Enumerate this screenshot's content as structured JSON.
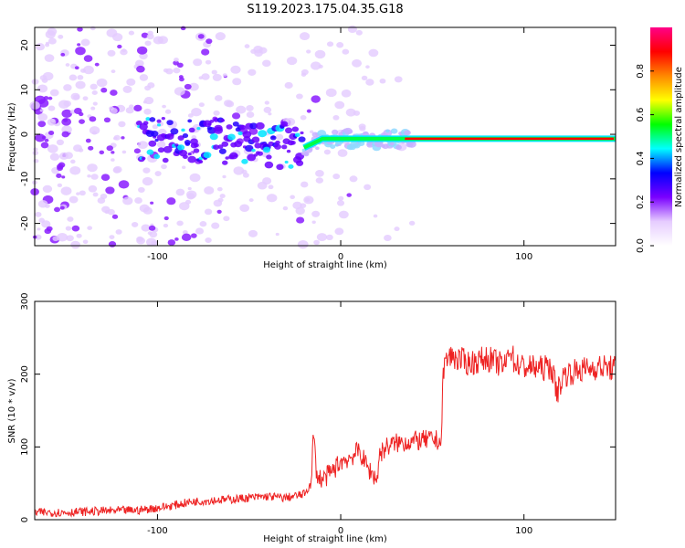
{
  "figure_title": "S119.2023.175.04.35.G18",
  "chart_data": [
    {
      "type": "heatmap",
      "title": "S119.2023.175.04.35.G18",
      "xlabel": "Height of straight line (km)",
      "ylabel": "Frequency (Hz)",
      "xlim": [
        -167,
        150
      ],
      "ylim": [
        -25,
        24
      ],
      "x_ticks": [
        -100,
        0,
        100
      ],
      "y_ticks": [
        -20,
        -10,
        0,
        10,
        20
      ],
      "colorbar": {
        "label": "Normalized spectral amplitude",
        "range": [
          0.0,
          1.0
        ],
        "ticks": [
          0.0,
          0.2,
          0.4,
          0.6,
          0.8
        ],
        "colormap": [
          "#ffffff",
          "#e6ccff",
          "#7a00ff",
          "#0000ff",
          "#00ffff",
          "#00ff00",
          "#ffff00",
          "#ff8800",
          "#ff0000",
          "#ff0088"
        ]
      },
      "signal_line": {
        "x": [
          -100,
          -50,
          -20,
          -10,
          0,
          20,
          35,
          150
        ],
        "y": [
          -1,
          -2,
          -3,
          -1,
          -1,
          -1,
          -1,
          -1
        ]
      }
    },
    {
      "type": "line",
      "title": "",
      "xlabel": "Height of straight line (km)",
      "ylabel": "SNR (10 * v/v)",
      "xlim": [
        -167,
        150
      ],
      "ylim": [
        0,
        300
      ],
      "x_ticks": [
        -100,
        0,
        100
      ],
      "y_ticks": [
        0,
        100,
        200,
        300
      ],
      "line_color": "#ee2222",
      "series": [
        {
          "x": [
            -167,
            -150,
            -130,
            -110,
            -95,
            -80,
            -60,
            -40,
            -30,
            -20,
            -16,
            -15,
            -13,
            -10,
            -5,
            0,
            5,
            10,
            15,
            20,
            21,
            25,
            30,
            40,
            50,
            55,
            56,
            58,
            60,
            70,
            80,
            90,
            92,
            95,
            100,
            110,
            115,
            118,
            122,
            130,
            140,
            150
          ],
          "y": [
            10,
            10,
            12,
            13,
            18,
            25,
            28,
            32,
            30,
            35,
            50,
            120,
            60,
            55,
            65,
            80,
            85,
            95,
            70,
            55,
            90,
            100,
            105,
            108,
            110,
            108,
            210,
            220,
            225,
            215,
            222,
            210,
            240,
            215,
            210,
            208,
            210,
            175,
            200,
            205,
            210,
            208
          ]
        }
      ]
    }
  ]
}
